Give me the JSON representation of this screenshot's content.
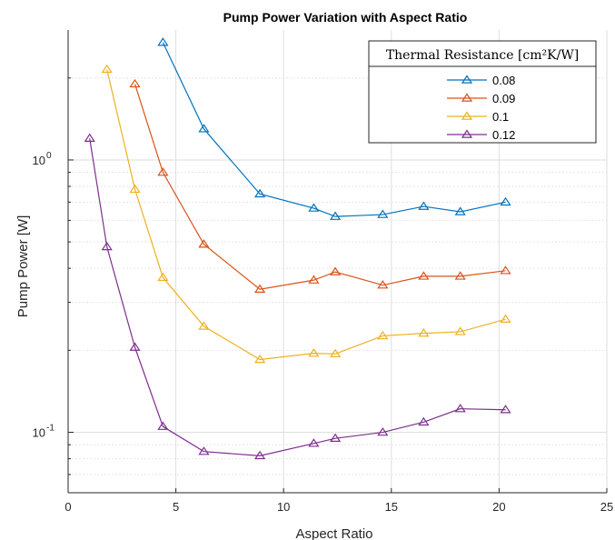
{
  "chart_data": {
    "type": "line",
    "title": "Pump Power Variation with Aspect Ratio",
    "xlabel": "Aspect Ratio",
    "ylabel": "Pump Power [W]",
    "xlim": [
      0,
      25
    ],
    "ylim": [
      0.06,
      3.0
    ],
    "yscale": "log",
    "grid": true,
    "x_ticks": [
      {
        "value": 0,
        "label": "0"
      },
      {
        "value": 5,
        "label": "5"
      },
      {
        "value": 10,
        "label": "10"
      },
      {
        "value": 15,
        "label": "15"
      },
      {
        "value": 20,
        "label": "20"
      },
      {
        "value": 25,
        "label": "25"
      }
    ],
    "y_ticks": [
      {
        "value": 0.1,
        "base": "10",
        "exp": "-1"
      },
      {
        "value": 1,
        "base": "10",
        "exp": "0"
      }
    ],
    "legend": {
      "title": "Thermal Resistance [cm²K/W]",
      "placement": "top-right",
      "marker": "triangle"
    },
    "series": [
      {
        "name": "0.08",
        "color": "#0072BD",
        "x": [
          4.4,
          6.3,
          8.9,
          11.4,
          12.4,
          14.6,
          16.5,
          18.2,
          20.3
        ],
        "y": [
          2.7,
          1.3,
          0.75,
          0.665,
          0.62,
          0.63,
          0.675,
          0.645,
          0.7
        ]
      },
      {
        "name": "0.09",
        "color": "#D95319",
        "x": [
          3.1,
          4.4,
          6.3,
          8.9,
          11.4,
          12.4,
          14.6,
          16.5,
          18.2,
          20.3
        ],
        "y": [
          1.9,
          0.9,
          0.49,
          0.335,
          0.362,
          0.388,
          0.347,
          0.374,
          0.374,
          0.392
        ]
      },
      {
        "name": "0.1",
        "color": "#EDB120",
        "x": [
          1.8,
          3.1,
          4.4,
          6.3,
          8.9,
          11.4,
          12.4,
          14.6,
          16.5,
          18.2,
          20.3
        ],
        "y": [
          2.15,
          0.78,
          0.37,
          0.245,
          0.185,
          0.195,
          0.194,
          0.226,
          0.231,
          0.234,
          0.26
        ]
      },
      {
        "name": "0.12",
        "color": "#7E2F8E",
        "x": [
          1.0,
          1.8,
          3.1,
          4.4,
          6.3,
          8.9,
          11.4,
          12.4,
          14.6,
          16.5,
          18.2,
          20.3
        ],
        "y": [
          1.2,
          0.48,
          0.205,
          0.105,
          0.085,
          0.082,
          0.091,
          0.095,
          0.1,
          0.109,
          0.122,
          0.121
        ]
      }
    ]
  }
}
